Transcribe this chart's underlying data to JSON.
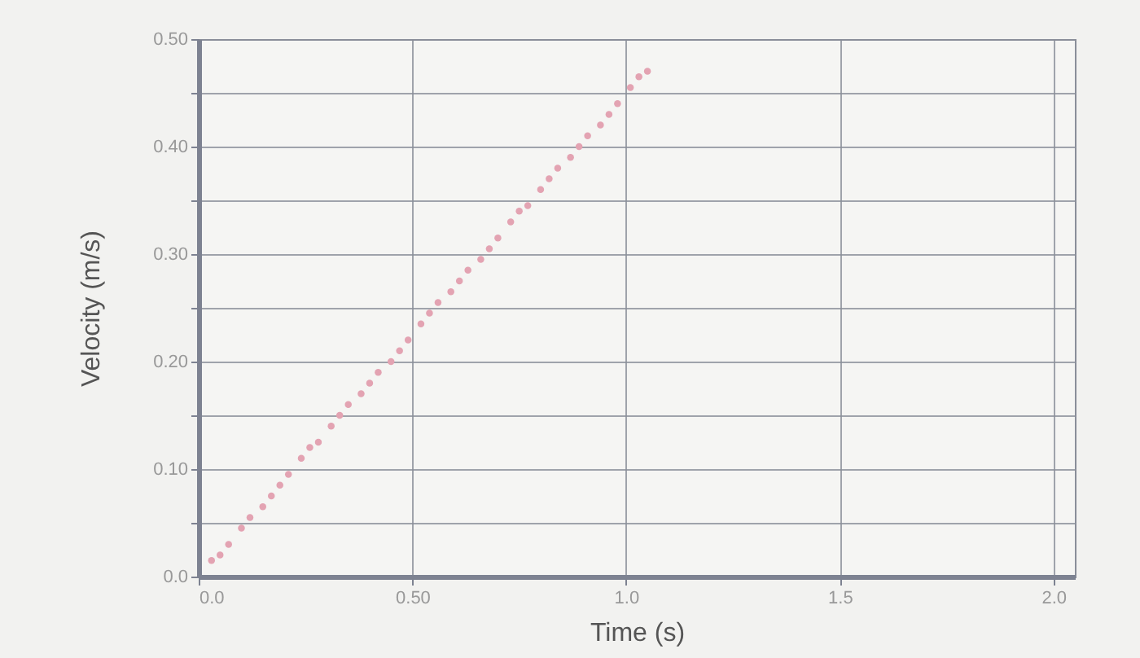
{
  "chart_data": {
    "type": "scatter",
    "xlabel": "Time (s)",
    "ylabel": "Velocity (m/s)",
    "x": [
      0.03,
      0.05,
      0.07,
      0.1,
      0.12,
      0.15,
      0.17,
      0.19,
      0.21,
      0.24,
      0.26,
      0.28,
      0.31,
      0.33,
      0.35,
      0.38,
      0.4,
      0.42,
      0.45,
      0.47,
      0.49,
      0.52,
      0.54,
      0.56,
      0.59,
      0.61,
      0.63,
      0.66,
      0.68,
      0.7,
      0.73,
      0.75,
      0.77,
      0.8,
      0.82,
      0.84,
      0.87,
      0.89,
      0.91,
      0.94,
      0.96,
      0.98,
      1.01,
      1.03,
      1.05
    ],
    "series": [
      {
        "color": "#e3a3b2",
        "values": [
          0.015,
          0.02,
          0.03,
          0.045,
          0.055,
          0.065,
          0.075,
          0.085,
          0.095,
          0.11,
          0.12,
          0.125,
          0.14,
          0.15,
          0.16,
          0.17,
          0.18,
          0.19,
          0.2,
          0.21,
          0.22,
          0.235,
          0.245,
          0.255,
          0.265,
          0.275,
          0.285,
          0.295,
          0.305,
          0.315,
          0.33,
          0.34,
          0.345,
          0.36,
          0.37,
          0.38,
          0.39,
          0.4,
          0.41,
          0.42,
          0.43,
          0.44,
          0.455,
          0.465,
          0.47
        ]
      }
    ],
    "xlim": [
      0,
      2.05
    ],
    "ylim": [
      0,
      0.5
    ],
    "xticks": [
      {
        "value": 0,
        "label": "0.0"
      },
      {
        "value": 0.5,
        "label": "0.50"
      },
      {
        "value": 1,
        "label": "1.0"
      },
      {
        "value": 1.5,
        "label": "1.5"
      },
      {
        "value": 2,
        "label": "2.0"
      }
    ],
    "yticks": [
      {
        "value": 0,
        "label": "0.0"
      },
      {
        "value": 0.05,
        "label": null
      },
      {
        "value": 0.1,
        "label": "0.10"
      },
      {
        "value": 0.15,
        "label": null
      },
      {
        "value": 0.2,
        "label": "0.20"
      },
      {
        "value": 0.25,
        "label": null
      },
      {
        "value": 0.3,
        "label": "0.30"
      },
      {
        "value": 0.35,
        "label": null
      },
      {
        "value": 0.4,
        "label": "0.40"
      },
      {
        "value": 0.45,
        "label": null
      },
      {
        "value": 0.5,
        "label": "0.50"
      }
    ],
    "grid": true,
    "marker": "circle"
  }
}
